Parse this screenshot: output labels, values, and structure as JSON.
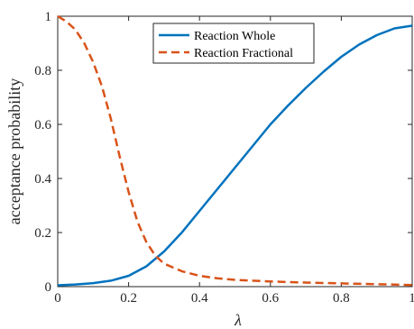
{
  "chart_data": {
    "type": "line",
    "title": "",
    "xlabel": "λ",
    "ylabel": "acceptance probability",
    "xlim": [
      0,
      1
    ],
    "ylim": [
      0,
      1
    ],
    "xticks": [
      0,
      0.2,
      0.4,
      0.6,
      0.8,
      1
    ],
    "xtick_labels": [
      "0",
      "0.2",
      "0.4",
      "0.6",
      "0.8",
      "1"
    ],
    "yticks": [
      0,
      0.2,
      0.4,
      0.6,
      0.8,
      1
    ],
    "ytick_labels": [
      "0",
      "0.2",
      "0.4",
      "0.6",
      "0.8",
      "1"
    ],
    "grid": false,
    "legend_position": "top-center",
    "series": [
      {
        "name": "Reaction Whole",
        "style": "solid",
        "color": "#0072BD",
        "x": [
          0,
          0.05,
          0.1,
          0.15,
          0.2,
          0.25,
          0.3,
          0.35,
          0.4,
          0.45,
          0.5,
          0.55,
          0.6,
          0.65,
          0.7,
          0.75,
          0.8,
          0.85,
          0.9,
          0.95,
          1.0
        ],
        "y": [
          0.005,
          0.008,
          0.013,
          0.022,
          0.04,
          0.075,
          0.13,
          0.2,
          0.28,
          0.36,
          0.44,
          0.52,
          0.6,
          0.67,
          0.735,
          0.795,
          0.85,
          0.895,
          0.93,
          0.955,
          0.965
        ]
      },
      {
        "name": "Reaction Fractional",
        "style": "dashed",
        "color": "#D95319",
        "x": [
          0,
          0.025,
          0.05,
          0.075,
          0.1,
          0.125,
          0.15,
          0.175,
          0.2,
          0.225,
          0.25,
          0.275,
          0.3,
          0.35,
          0.4,
          0.45,
          0.5,
          0.6,
          0.7,
          0.8,
          0.9,
          1.0
        ],
        "y": [
          1.0,
          0.98,
          0.95,
          0.9,
          0.83,
          0.74,
          0.62,
          0.48,
          0.35,
          0.24,
          0.165,
          0.115,
          0.085,
          0.057,
          0.04,
          0.031,
          0.025,
          0.019,
          0.015,
          0.012,
          0.009,
          0.006
        ]
      }
    ]
  }
}
